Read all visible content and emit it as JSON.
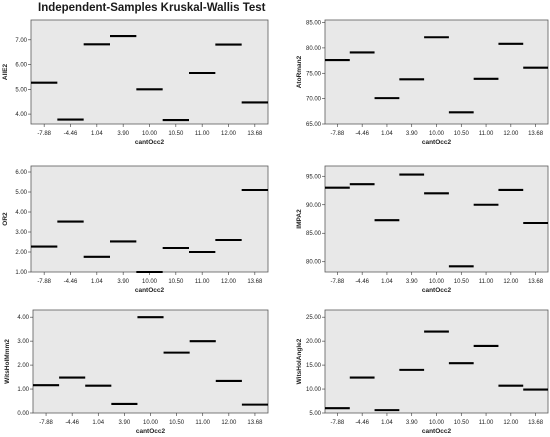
{
  "page": {
    "title": "Independent-Samples Kruskal-Wallis Test"
  },
  "chart_data": [
    {
      "type": "line",
      "mark": "horizontal-level",
      "categories": [
        "-7.88",
        "-4.46",
        "1.04",
        "3.90",
        "10.00",
        "10.50",
        "11.00",
        "12.00",
        "13.68"
      ],
      "values": [
        5.27,
        3.78,
        6.82,
        7.15,
        5.0,
        3.76,
        5.66,
        6.81,
        4.47
      ],
      "xlabel": "cantOcc2",
      "ylabel": "AllE2",
      "yticks": [
        4.0,
        5.0,
        6.0,
        7.0
      ],
      "yticklabels": [
        "4.00",
        "5.00",
        "6.00",
        "7.00"
      ],
      "ylim": [
        3.6,
        7.8
      ],
      "grid": false
    },
    {
      "type": "line",
      "mark": "horizontal-level",
      "categories": [
        "-7.88",
        "-4.46",
        "1.04",
        "3.90",
        "10.00",
        "10.50",
        "11.00",
        "12.00",
        "13.68"
      ],
      "values": [
        77.6,
        79.1,
        70.1,
        73.8,
        82.1,
        67.3,
        73.9,
        80.8,
        76.1
      ],
      "xlabel": "cantOcc2",
      "ylabel": "AtoRman2",
      "yticks": [
        65,
        70,
        75,
        80,
        85
      ],
      "yticklabels": [
        "65.00",
        "70.00",
        "75.00",
        "80.00",
        "85.00"
      ],
      "ylim": [
        65,
        85.5
      ],
      "grid": false
    },
    {
      "type": "line",
      "mark": "horizontal-level",
      "categories": [
        "-7.88",
        "-4.46",
        "1.04",
        "3.90",
        "10.00",
        "10.50",
        "11.00",
        "12.00",
        "13.68"
      ],
      "values": [
        2.27,
        3.52,
        1.76,
        2.53,
        1.0,
        2.2,
        2.0,
        2.6,
        5.1
      ],
      "xlabel": "cantOcc2",
      "ylabel": "OR2",
      "yticks": [
        1,
        2,
        3,
        4,
        5,
        6
      ],
      "yticklabels": [
        "1.00",
        "2.00",
        "3.00",
        "4.00",
        "5.00",
        "6.00"
      ],
      "ylim": [
        1,
        6.3
      ],
      "grid": false
    },
    {
      "type": "line",
      "mark": "horizontal-level",
      "categories": [
        "-7.88",
        "-4.46",
        "1.04",
        "3.90",
        "10.00",
        "10.50",
        "11.00",
        "12.00",
        "13.68"
      ],
      "values": [
        93.0,
        93.6,
        87.3,
        95.3,
        92.0,
        79.2,
        90.0,
        92.6,
        86.8
      ],
      "xlabel": "cantOcc2",
      "ylabel": "IMPA2",
      "yticks": [
        80,
        85,
        90,
        95
      ],
      "yticklabels": [
        "80.00",
        "85.00",
        "90.00",
        "95.00"
      ],
      "ylim": [
        78.2,
        96.8
      ],
      "grid": false
    },
    {
      "type": "line",
      "mark": "horizontal-level",
      "categories": [
        "-7.88",
        "-4.46",
        "1.04",
        "3.90",
        "10.00",
        "10.50",
        "11.00",
        "12.00",
        "13.68"
      ],
      "values": [
        1.16,
        1.48,
        1.14,
        0.38,
        4.0,
        2.52,
        3.0,
        1.34,
        0.35
      ],
      "xlabel": "cantOcc2",
      "ylabel": "WitsHolMmm2",
      "yticks": [
        0,
        1,
        2,
        3,
        4
      ],
      "yticklabels": [
        "0.00",
        "1.00",
        "2.00",
        "3.00",
        "4.00"
      ],
      "ylim": [
        0,
        4.3
      ],
      "grid": false
    },
    {
      "type": "line",
      "mark": "horizontal-level",
      "categories": [
        "-7.88",
        "-4.46",
        "1.04",
        "3.90",
        "10.00",
        "10.50",
        "11.00",
        "12.00",
        "13.68"
      ],
      "values": [
        6.0,
        12.4,
        5.6,
        14.0,
        22.0,
        15.4,
        19.0,
        10.7,
        9.9
      ],
      "xlabel": "cantOcc2",
      "ylabel": "WitsHolAngle2",
      "yticks": [
        5,
        10,
        15,
        20,
        25
      ],
      "yticklabels": [
        "5.00",
        "10.00",
        "15.00",
        "20.00",
        "25.00"
      ],
      "ylim": [
        5,
        26.5
      ],
      "grid": false
    }
  ]
}
